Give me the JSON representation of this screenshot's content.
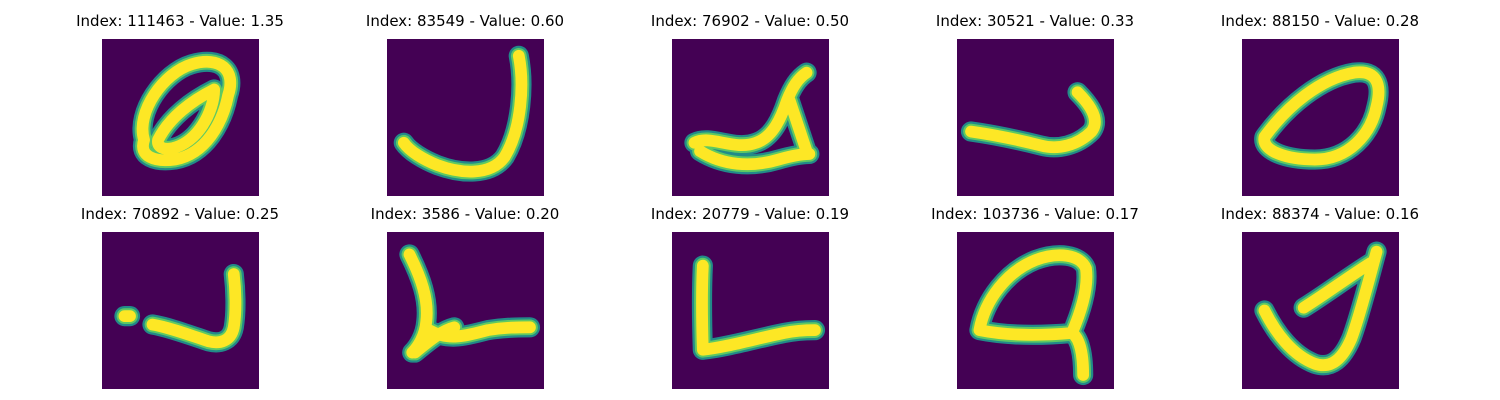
{
  "colors": {
    "background": "#440154",
    "stroke_core": "#fde725",
    "stroke_mid": "#5ec962",
    "stroke_edge": "#21918c"
  },
  "samples": [
    {
      "title": "Index: 111463 - Value: 1.35",
      "glyph": "zero-loop"
    },
    {
      "title": "Index: 83549 - Value: 0.60",
      "glyph": "hook-j"
    },
    {
      "title": "Index: 76902 - Value: 0.50",
      "glyph": "blob-stroke"
    },
    {
      "title": "Index: 30521 - Value: 0.33",
      "glyph": "short-hook"
    },
    {
      "title": "Index: 88150 - Value: 0.28",
      "glyph": "tilted-loop"
    },
    {
      "title": "Index: 70892 - Value: 0.25",
      "glyph": "dot-hook"
    },
    {
      "title": "Index: 3586 - Value: 0.20",
      "glyph": "corner-l"
    },
    {
      "title": "Index: 20779 - Value: 0.19",
      "glyph": "right-angle-l"
    },
    {
      "title": "Index: 103736 - Value: 0.17",
      "glyph": "dome-loop"
    },
    {
      "title": "Index: 88374 - Value: 0.16",
      "glyph": "open-triangle"
    }
  ]
}
